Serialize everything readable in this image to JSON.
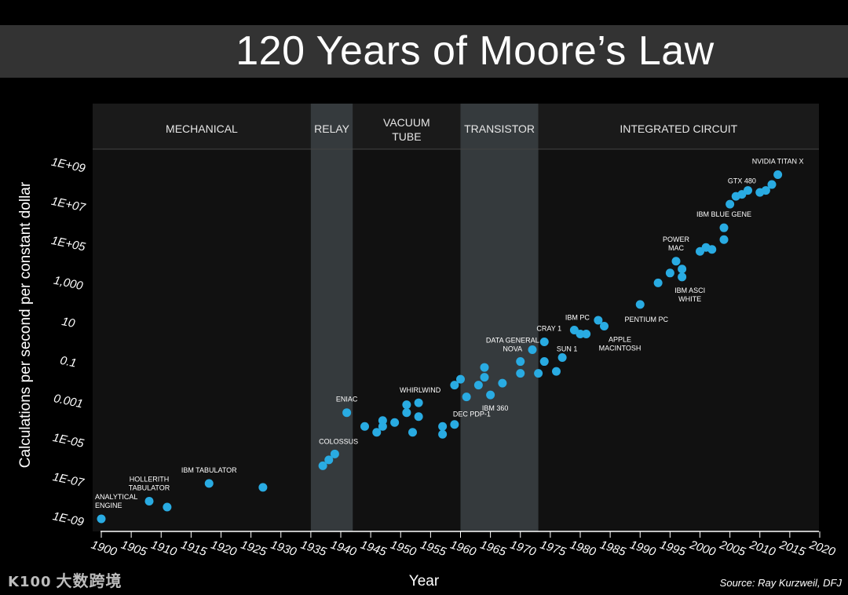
{
  "title": "120 Years of Moore’s Law",
  "source": "Source: Ray Kurzweil, DFJ",
  "watermark": {
    "logo": "K100",
    "text": "大数跨境"
  },
  "colors": {
    "background": "#000000",
    "title_bar": "#333333",
    "plot_area": "#111111",
    "era_band": "#222222",
    "highlight_band": "#353a3d",
    "point": "#29abe2"
  },
  "chart_data": {
    "type": "scatter",
    "title": "120 Years of Moore’s Law",
    "xlabel": "Year",
    "ylabel": "Calculations per second per constant dollar",
    "xlim": [
      1898,
      2020
    ],
    "ylim": [
      -9.6,
      9.6
    ],
    "log_scale_y": true,
    "grid": false,
    "xticks": [
      1900,
      1905,
      1910,
      1915,
      1920,
      1925,
      1930,
      1935,
      1940,
      1945,
      1950,
      1955,
      1960,
      1965,
      1970,
      1975,
      1980,
      1985,
      1990,
      1995,
      2000,
      2005,
      2010,
      2015,
      2020
    ],
    "yticks": [
      {
        "exp": 9,
        "label": "1E+09"
      },
      {
        "exp": 7,
        "label": "1E+07"
      },
      {
        "exp": 5,
        "label": "1E+05"
      },
      {
        "exp": 3,
        "label": "1,000"
      },
      {
        "exp": 1,
        "label": "10"
      },
      {
        "exp": -1,
        "label": "0.1"
      },
      {
        "exp": -3,
        "label": "0.001"
      },
      {
        "exp": -5,
        "label": "1E-05"
      },
      {
        "exp": -7,
        "label": "1E-07"
      },
      {
        "exp": -9,
        "label": "1E-09"
      }
    ],
    "eras": [
      {
        "label": "MECHANICAL",
        "start": 1898,
        "end": 1935,
        "highlight": false
      },
      {
        "label": "RELAY",
        "start": 1935,
        "end": 1942,
        "highlight": true
      },
      {
        "label": "VACUUM\nTUBE",
        "start": 1942,
        "end": 1960,
        "highlight": false
      },
      {
        "label": "TRANSISTOR",
        "start": 1960,
        "end": 1973,
        "highlight": true
      },
      {
        "label": "INTEGRATED CIRCUIT",
        "start": 1973,
        "end": 2020,
        "highlight": false
      }
    ],
    "points": [
      {
        "x": 1900,
        "y": -9.0
      },
      {
        "x": 1908,
        "y": -8.1
      },
      {
        "x": 1911,
        "y": -8.4
      },
      {
        "x": 1918,
        "y": -7.2
      },
      {
        "x": 1927,
        "y": -7.4
      },
      {
        "x": 1937,
        "y": -6.3
      },
      {
        "x": 1938,
        "y": -6.0
      },
      {
        "x": 1939,
        "y": -5.7
      },
      {
        "x": 1941,
        "y": -3.6
      },
      {
        "x": 1944,
        "y": -4.3
      },
      {
        "x": 1946,
        "y": -4.6
      },
      {
        "x": 1947,
        "y": -4.3
      },
      {
        "x": 1947,
        "y": -4.0
      },
      {
        "x": 1949,
        "y": -4.1
      },
      {
        "x": 1951,
        "y": -3.6
      },
      {
        "x": 1951,
        "y": -3.2
      },
      {
        "x": 1952,
        "y": -4.6
      },
      {
        "x": 1953,
        "y": -3.8
      },
      {
        "x": 1953,
        "y": -3.1
      },
      {
        "x": 1957,
        "y": -4.3
      },
      {
        "x": 1957,
        "y": -4.7
      },
      {
        "x": 1959,
        "y": -4.2
      },
      {
        "x": 1959,
        "y": -2.2
      },
      {
        "x": 1960,
        "y": -1.9
      },
      {
        "x": 1961,
        "y": -2.8
      },
      {
        "x": 1963,
        "y": -2.2
      },
      {
        "x": 1964,
        "y": -1.3
      },
      {
        "x": 1964,
        "y": -1.8
      },
      {
        "x": 1965,
        "y": -2.7
      },
      {
        "x": 1967,
        "y": -2.1
      },
      {
        "x": 1970,
        "y": -1.6
      },
      {
        "x": 1970,
        "y": -1.0
      },
      {
        "x": 1972,
        "y": -0.4
      },
      {
        "x": 1973,
        "y": -1.6
      },
      {
        "x": 1974,
        "y": 0.0
      },
      {
        "x": 1974,
        "y": -1.0
      },
      {
        "x": 1976,
        "y": -1.5
      },
      {
        "x": 1977,
        "y": -0.8
      },
      {
        "x": 1979,
        "y": 0.6
      },
      {
        "x": 1980,
        "y": 0.4
      },
      {
        "x": 1981,
        "y": 0.4
      },
      {
        "x": 1983,
        "y": 1.1
      },
      {
        "x": 1984,
        "y": 0.8
      },
      {
        "x": 1990,
        "y": 1.9
      },
      {
        "x": 1993,
        "y": 3.0
      },
      {
        "x": 1995,
        "y": 3.5
      },
      {
        "x": 1996,
        "y": 4.1
      },
      {
        "x": 1997,
        "y": 3.7
      },
      {
        "x": 1997,
        "y": 3.3
      },
      {
        "x": 2000,
        "y": 4.6
      },
      {
        "x": 2001,
        "y": 4.8
      },
      {
        "x": 2002,
        "y": 4.7
      },
      {
        "x": 2004,
        "y": 5.2
      },
      {
        "x": 2004,
        "y": 5.8
      },
      {
        "x": 2005,
        "y": 7.0
      },
      {
        "x": 2006,
        "y": 7.4
      },
      {
        "x": 2007,
        "y": 7.5
      },
      {
        "x": 2008,
        "y": 7.7
      },
      {
        "x": 2010,
        "y": 7.6
      },
      {
        "x": 2011,
        "y": 7.7
      },
      {
        "x": 2012,
        "y": 8.0
      },
      {
        "x": 2013,
        "y": 8.5
      }
    ],
    "annotations": [
      {
        "x": 1900,
        "y": -9.0,
        "anchor": "start",
        "lines": [
          "ANALYTICAL",
          "ENGINE"
        ]
      },
      {
        "x": 1908,
        "y": -8.1,
        "anchor": "middle",
        "lines": [
          "HOLLERITH",
          "TABULATOR"
        ]
      },
      {
        "x": 1918,
        "y": -7.2,
        "anchor": "middle",
        "lines": [
          "IBM TABULATOR"
        ]
      },
      {
        "x": 1937,
        "y": -6.3,
        "anchor": "middle",
        "lines": [
          "COLOSSUS"
        ]
      },
      {
        "x": 1941,
        "y": -3.6,
        "anchor": "middle",
        "lines": [
          "ENIAC"
        ]
      },
      {
        "x": 1953,
        "y": -3.1,
        "anchor": "middle",
        "lines": [
          "WHIRLWIND"
        ]
      },
      {
        "x": 1959,
        "y": -4.2,
        "anchor": "middle",
        "lines": [
          "DEC PDP-1"
        ]
      },
      {
        "x": 1965,
        "y": -2.7,
        "anchor": "middle",
        "lines": [
          "IBM 360"
        ]
      },
      {
        "x": 1970,
        "y": -1.0,
        "anchor": "middle",
        "lines": [
          "DATA GENERAL",
          "NOVA"
        ]
      },
      {
        "x": 1974,
        "y": 0.0,
        "anchor": "middle",
        "lines": [
          "CRAY 1"
        ]
      },
      {
        "x": 1977,
        "y": -0.8,
        "anchor": "middle",
        "lines": [
          "SUN 1"
        ]
      },
      {
        "x": 1979,
        "y": 0.6,
        "anchor": "middle",
        "lines": [
          "IBM PC"
        ]
      },
      {
        "x": 1984,
        "y": 0.8,
        "anchor": "middle",
        "lines": [
          "APPLE",
          "MACINTOSH"
        ]
      },
      {
        "x": 1990,
        "y": 1.9,
        "anchor": "middle",
        "lines": [
          "PENTIUM PC"
        ]
      },
      {
        "x": 1996,
        "y": 4.1,
        "anchor": "middle",
        "lines": [
          "POWER",
          "MAC"
        ]
      },
      {
        "x": 1997,
        "y": 3.3,
        "anchor": "middle",
        "lines": [
          "IBM ASCI",
          "WHITE"
        ]
      },
      {
        "x": 2004,
        "y": 5.8,
        "anchor": "middle",
        "lines": [
          "IBM BLUE GENE"
        ]
      },
      {
        "x": 2007,
        "y": 7.5,
        "anchor": "middle",
        "lines": [
          "GTX 480"
        ]
      },
      {
        "x": 2013,
        "y": 8.5,
        "anchor": "middle",
        "lines": [
          "NVIDIA TITAN X"
        ]
      }
    ]
  }
}
